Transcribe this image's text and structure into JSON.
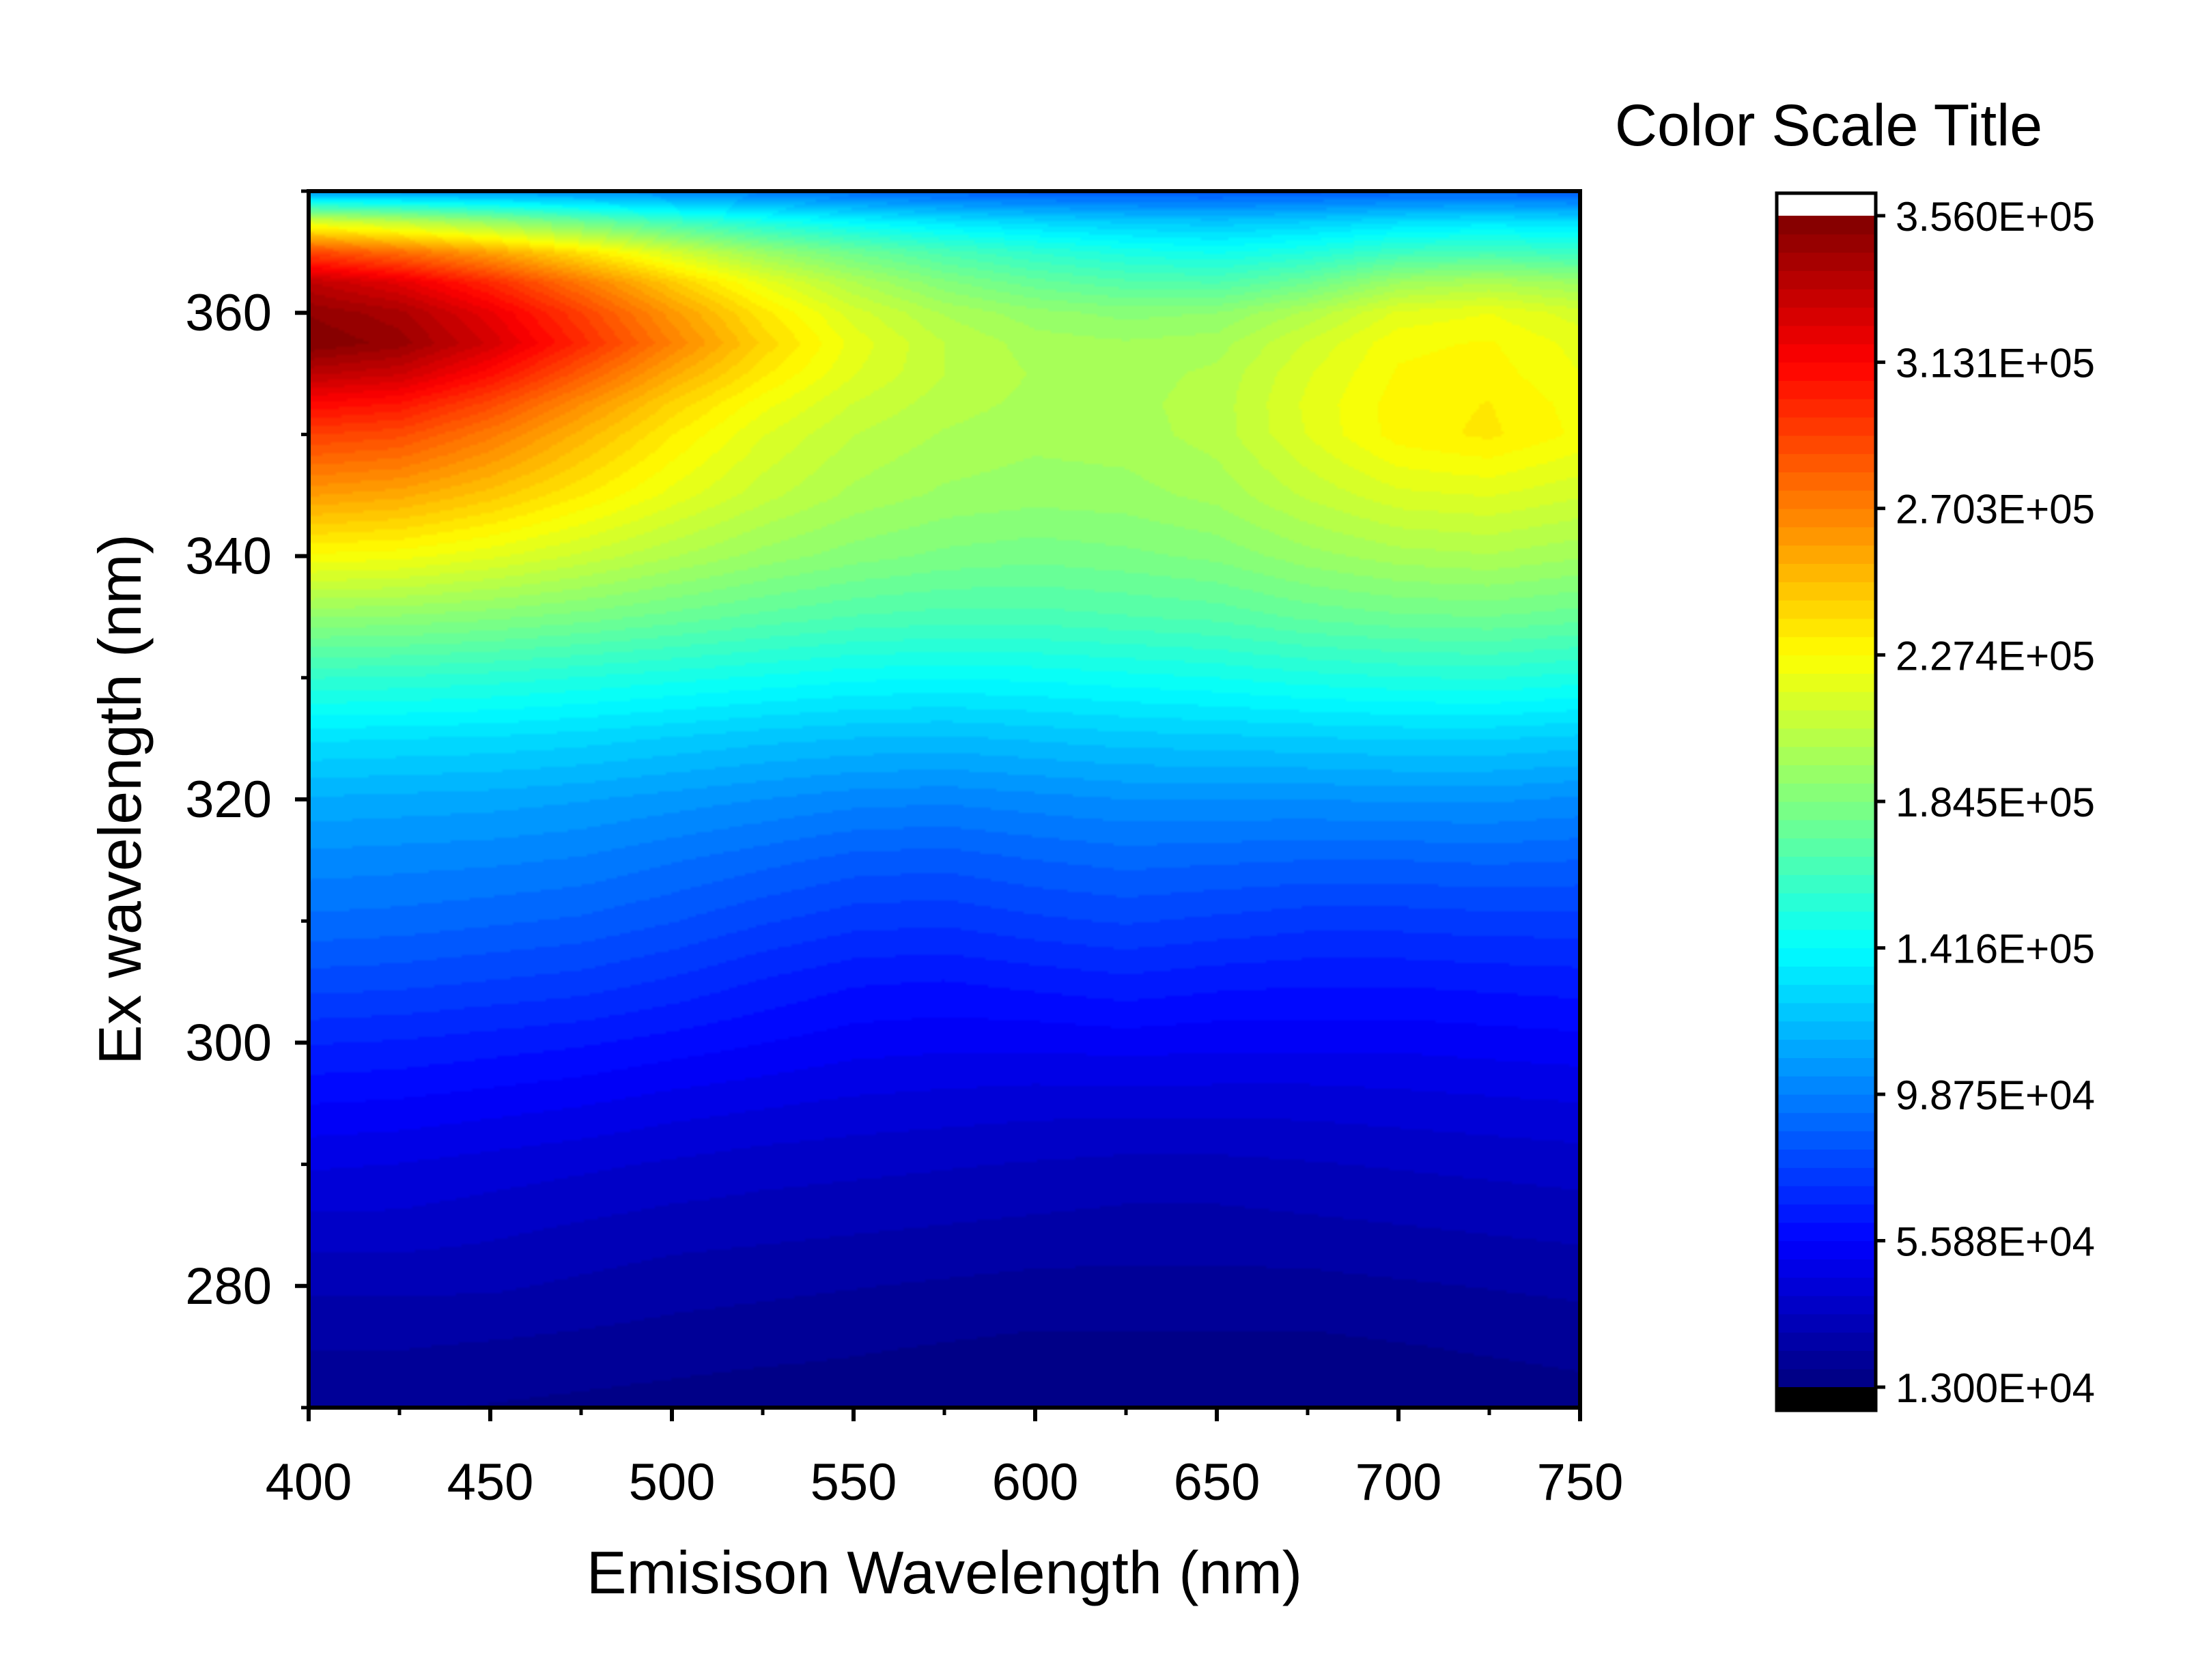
{
  "chart_data": {
    "type": "heatmap",
    "subtype": "contour",
    "xlabel": "Emisison Wavelength (nm)",
    "ylabel": "Ex wavelength (nm)",
    "xlim": [
      400,
      750
    ],
    "ylim": [
      270,
      370
    ],
    "x_ticks": [
      400,
      450,
      500,
      550,
      600,
      650,
      700,
      750
    ],
    "y_ticks": [
      280,
      300,
      320,
      340,
      360
    ],
    "colorscale": {
      "title": "Color Scale Title",
      "min": 13000,
      "max": 356000,
      "levels": 64,
      "tick_labels": [
        "1.300E+04",
        "5.588E+04",
        "9.875E+04",
        "1.416E+05",
        "1.845E+05",
        "2.274E+05",
        "2.703E+05",
        "3.131E+05",
        "3.560E+05"
      ],
      "tick_values": [
        13000,
        55880,
        98750,
        141600,
        184500,
        227400,
        270300,
        313100,
        356000
      ],
      "colormap": "jet",
      "below_color": "#000000",
      "above_color": "#ffffff"
    },
    "grid_x": [
      400,
      425,
      450,
      475,
      500,
      525,
      550,
      575,
      600,
      625,
      650,
      675,
      700,
      725,
      750
    ],
    "grid_y": [
      370,
      367.5,
      365,
      362.5,
      360,
      357.5,
      355,
      352.5,
      350,
      345,
      340,
      335,
      330,
      325,
      320,
      315,
      310,
      305,
      300,
      295,
      290,
      285,
      280,
      275,
      270
    ],
    "z": [
      [
        105000,
        105000,
        105000,
        103000,
        100000,
        96000,
        92000,
        88000,
        86000,
        85000,
        85000,
        86000,
        88000,
        88000,
        86000
      ],
      [
        215000,
        205000,
        192000,
        178000,
        163000,
        150000,
        140000,
        133000,
        128000,
        124000,
        122000,
        125000,
        130000,
        133000,
        130000
      ],
      [
        290000,
        276000,
        258000,
        236000,
        213000,
        193000,
        178000,
        166000,
        157000,
        150000,
        146000,
        152000,
        162000,
        165000,
        160000
      ],
      [
        335000,
        322000,
        300000,
        273000,
        245000,
        220000,
        201000,
        186000,
        176000,
        170000,
        168000,
        178000,
        195000,
        200000,
        194000
      ],
      [
        350000,
        342000,
        320000,
        292000,
        262000,
        235000,
        214000,
        200000,
        192000,
        188000,
        190000,
        202000,
        218000,
        222000,
        214000
      ],
      [
        356000,
        348000,
        328000,
        300000,
        270000,
        242000,
        220000,
        206000,
        198000,
        196000,
        198000,
        212000,
        226000,
        228000,
        220000
      ],
      [
        336000,
        330000,
        310000,
        283000,
        256000,
        234000,
        217000,
        206000,
        200000,
        198000,
        202000,
        216000,
        228000,
        230000,
        222000
      ],
      [
        312000,
        307000,
        289000,
        265000,
        242000,
        224000,
        211000,
        203000,
        199000,
        199000,
        203000,
        218000,
        230000,
        233000,
        225000
      ],
      [
        292000,
        288000,
        272000,
        252000,
        233000,
        217000,
        206000,
        200000,
        197000,
        198000,
        203000,
        217000,
        230000,
        234000,
        226000
      ],
      [
        260000,
        256000,
        246000,
        233000,
        220000,
        208000,
        199000,
        194000,
        192000,
        193000,
        197000,
        207000,
        215000,
        217000,
        212000
      ],
      [
        226000,
        224000,
        218000,
        210000,
        201000,
        193000,
        187000,
        183000,
        181000,
        183000,
        186000,
        193000,
        198000,
        200000,
        196000
      ],
      [
        190000,
        189000,
        186000,
        182000,
        177000,
        172000,
        168000,
        166000,
        166000,
        168000,
        170000,
        175000,
        178000,
        179000,
        176000
      ],
      [
        158000,
        157000,
        155000,
        152000,
        149000,
        146000,
        143000,
        142000,
        143000,
        145000,
        147000,
        150000,
        152000,
        153000,
        150000
      ],
      [
        132000,
        131000,
        130000,
        128000,
        125000,
        122000,
        120000,
        119000,
        121000,
        123000,
        124000,
        125000,
        126000,
        126000,
        124000
      ],
      [
        114000,
        113000,
        112000,
        110000,
        107000,
        104000,
        101000,
        100000,
        102000,
        104000,
        104000,
        104000,
        105000,
        105000,
        103000
      ],
      [
        102000,
        101000,
        100000,
        98000,
        94000,
        90000,
        86000,
        85000,
        88000,
        90000,
        89000,
        88000,
        88000,
        89000,
        88000
      ],
      [
        92000,
        91000,
        89000,
        87000,
        83000,
        78000,
        74000,
        73000,
        76000,
        78000,
        76000,
        74000,
        74000,
        75000,
        75000
      ],
      [
        80000,
        79000,
        77000,
        75000,
        71000,
        66000,
        62000,
        61000,
        63000,
        65000,
        63000,
        62000,
        62000,
        63000,
        64000
      ],
      [
        67000,
        66000,
        64000,
        62000,
        59000,
        56000,
        53000,
        52000,
        52000,
        53000,
        52000,
        52000,
        52000,
        53000,
        54000
      ],
      [
        56000,
        55000,
        53000,
        51000,
        48000,
        46000,
        44000,
        43000,
        42000,
        42000,
        42000,
        42000,
        43000,
        44000,
        45000
      ],
      [
        46000,
        45000,
        43000,
        41000,
        39000,
        37000,
        36000,
        35000,
        34000,
        33000,
        33000,
        34000,
        35000,
        36000,
        37000
      ],
      [
        38000,
        38000,
        36000,
        34000,
        32000,
        31000,
        30000,
        29000,
        28000,
        27000,
        27000,
        28000,
        29000,
        30000,
        31000
      ],
      [
        30000,
        30000,
        30000,
        28000,
        26000,
        25000,
        24000,
        23000,
        22000,
        22000,
        22000,
        22000,
        23000,
        24000,
        25000
      ],
      [
        24000,
        24000,
        23000,
        22000,
        21000,
        20000,
        19000,
        18000,
        17000,
        17000,
        17000,
        17000,
        18000,
        19000,
        20000
      ],
      [
        19000,
        19000,
        18000,
        17000,
        16000,
        15000,
        15000,
        14000,
        14000,
        14000,
        14000,
        14000,
        15000,
        15000,
        16000
      ]
    ]
  }
}
